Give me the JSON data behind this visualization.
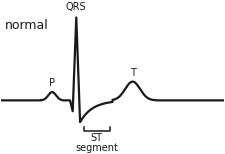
{
  "title": "normal",
  "title_fontsize": 9,
  "label_qrs": "QRS",
  "label_p": "P",
  "label_t": "T",
  "label_st": "ST",
  "label_segment": "segment",
  "bg_color": "#ffffff",
  "line_color": "#1a1a1a",
  "line_width": 1.6,
  "xlim": [
    0,
    10
  ],
  "ylim": [
    -2.2,
    5.0
  ]
}
